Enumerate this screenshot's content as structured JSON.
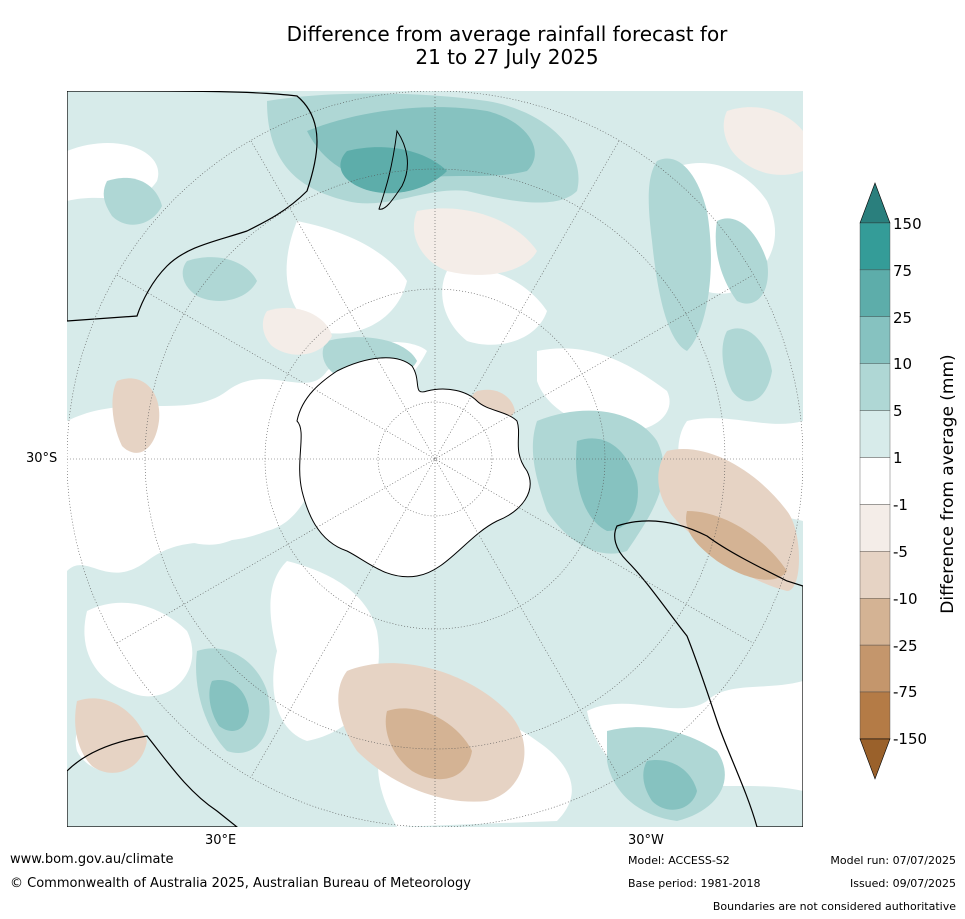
{
  "title": {
    "line1": "Difference from average rainfall forecast for",
    "line2": "21 to 27 July 2025"
  },
  "map": {
    "projection": "south-polar-stereographic",
    "lat_label": "30°S",
    "lon_labels": {
      "east": "30°E",
      "west": "30°W"
    },
    "features": [
      "coastlines",
      "antarctica",
      "australia",
      "south-america",
      "africa",
      "graticule"
    ]
  },
  "colorbar": {
    "label": "Difference from average (mm)",
    "ticks": [
      "150",
      "75",
      "25",
      "10",
      "5",
      "1",
      "-1",
      "-5",
      "-10",
      "-25",
      "-75",
      "-150"
    ],
    "colors": [
      "#2a7f7d",
      "#349c98",
      "#5dadaa",
      "#86c2c0",
      "#afd7d5",
      "#d7ebea",
      "#ffffff",
      "#f4ede8",
      "#e6d3c4",
      "#d4b394",
      "#c4966c",
      "#b47b46",
      "#9a612b"
    ]
  },
  "footer": {
    "website": "www.bom.gov.au/climate",
    "copyright": "© Commonwealth of Australia 2025, Australian Bureau of Meteorology",
    "model": "Model: ACCESS-S2",
    "base_period": "Base period: 1981-2018",
    "model_run": "Model run: 07/07/2025",
    "issued": "Issued: 09/07/2025",
    "disclaimer": "Boundaries are not considered authoritative"
  }
}
